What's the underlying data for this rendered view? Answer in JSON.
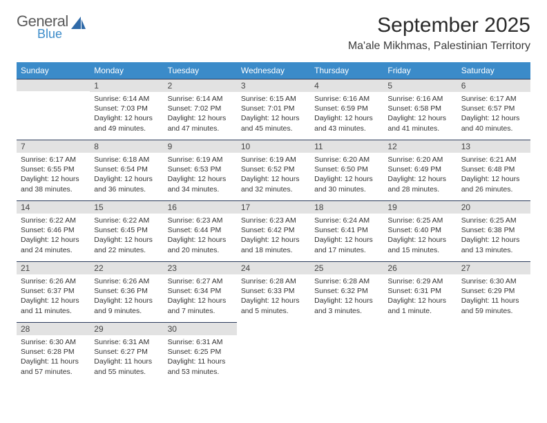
{
  "logo": {
    "word1": "General",
    "word2": "Blue",
    "icon_color": "#2f6aa8"
  },
  "title": "September 2025",
  "location": "Ma'ale Mikhmas, Palestinian Territory",
  "colors": {
    "header_bg": "#3b8bc9",
    "header_text": "#ffffff",
    "daynum_bg": "#e2e2e2",
    "cell_border": "#2a3a5a",
    "text": "#333333"
  },
  "weekdays": [
    "Sunday",
    "Monday",
    "Tuesday",
    "Wednesday",
    "Thursday",
    "Friday",
    "Saturday"
  ],
  "weeks": [
    [
      null,
      {
        "n": "1",
        "sunrise": "Sunrise: 6:14 AM",
        "sunset": "Sunset: 7:03 PM",
        "day1": "Daylight: 12 hours",
        "day2": "and 49 minutes."
      },
      {
        "n": "2",
        "sunrise": "Sunrise: 6:14 AM",
        "sunset": "Sunset: 7:02 PM",
        "day1": "Daylight: 12 hours",
        "day2": "and 47 minutes."
      },
      {
        "n": "3",
        "sunrise": "Sunrise: 6:15 AM",
        "sunset": "Sunset: 7:01 PM",
        "day1": "Daylight: 12 hours",
        "day2": "and 45 minutes."
      },
      {
        "n": "4",
        "sunrise": "Sunrise: 6:16 AM",
        "sunset": "Sunset: 6:59 PM",
        "day1": "Daylight: 12 hours",
        "day2": "and 43 minutes."
      },
      {
        "n": "5",
        "sunrise": "Sunrise: 6:16 AM",
        "sunset": "Sunset: 6:58 PM",
        "day1": "Daylight: 12 hours",
        "day2": "and 41 minutes."
      },
      {
        "n": "6",
        "sunrise": "Sunrise: 6:17 AM",
        "sunset": "Sunset: 6:57 PM",
        "day1": "Daylight: 12 hours",
        "day2": "and 40 minutes."
      }
    ],
    [
      {
        "n": "7",
        "sunrise": "Sunrise: 6:17 AM",
        "sunset": "Sunset: 6:55 PM",
        "day1": "Daylight: 12 hours",
        "day2": "and 38 minutes."
      },
      {
        "n": "8",
        "sunrise": "Sunrise: 6:18 AM",
        "sunset": "Sunset: 6:54 PM",
        "day1": "Daylight: 12 hours",
        "day2": "and 36 minutes."
      },
      {
        "n": "9",
        "sunrise": "Sunrise: 6:19 AM",
        "sunset": "Sunset: 6:53 PM",
        "day1": "Daylight: 12 hours",
        "day2": "and 34 minutes."
      },
      {
        "n": "10",
        "sunrise": "Sunrise: 6:19 AM",
        "sunset": "Sunset: 6:52 PM",
        "day1": "Daylight: 12 hours",
        "day2": "and 32 minutes."
      },
      {
        "n": "11",
        "sunrise": "Sunrise: 6:20 AM",
        "sunset": "Sunset: 6:50 PM",
        "day1": "Daylight: 12 hours",
        "day2": "and 30 minutes."
      },
      {
        "n": "12",
        "sunrise": "Sunrise: 6:20 AM",
        "sunset": "Sunset: 6:49 PM",
        "day1": "Daylight: 12 hours",
        "day2": "and 28 minutes."
      },
      {
        "n": "13",
        "sunrise": "Sunrise: 6:21 AM",
        "sunset": "Sunset: 6:48 PM",
        "day1": "Daylight: 12 hours",
        "day2": "and 26 minutes."
      }
    ],
    [
      {
        "n": "14",
        "sunrise": "Sunrise: 6:22 AM",
        "sunset": "Sunset: 6:46 PM",
        "day1": "Daylight: 12 hours",
        "day2": "and 24 minutes."
      },
      {
        "n": "15",
        "sunrise": "Sunrise: 6:22 AM",
        "sunset": "Sunset: 6:45 PM",
        "day1": "Daylight: 12 hours",
        "day2": "and 22 minutes."
      },
      {
        "n": "16",
        "sunrise": "Sunrise: 6:23 AM",
        "sunset": "Sunset: 6:44 PM",
        "day1": "Daylight: 12 hours",
        "day2": "and 20 minutes."
      },
      {
        "n": "17",
        "sunrise": "Sunrise: 6:23 AM",
        "sunset": "Sunset: 6:42 PM",
        "day1": "Daylight: 12 hours",
        "day2": "and 18 minutes."
      },
      {
        "n": "18",
        "sunrise": "Sunrise: 6:24 AM",
        "sunset": "Sunset: 6:41 PM",
        "day1": "Daylight: 12 hours",
        "day2": "and 17 minutes."
      },
      {
        "n": "19",
        "sunrise": "Sunrise: 6:25 AM",
        "sunset": "Sunset: 6:40 PM",
        "day1": "Daylight: 12 hours",
        "day2": "and 15 minutes."
      },
      {
        "n": "20",
        "sunrise": "Sunrise: 6:25 AM",
        "sunset": "Sunset: 6:38 PM",
        "day1": "Daylight: 12 hours",
        "day2": "and 13 minutes."
      }
    ],
    [
      {
        "n": "21",
        "sunrise": "Sunrise: 6:26 AM",
        "sunset": "Sunset: 6:37 PM",
        "day1": "Daylight: 12 hours",
        "day2": "and 11 minutes."
      },
      {
        "n": "22",
        "sunrise": "Sunrise: 6:26 AM",
        "sunset": "Sunset: 6:36 PM",
        "day1": "Daylight: 12 hours",
        "day2": "and 9 minutes."
      },
      {
        "n": "23",
        "sunrise": "Sunrise: 6:27 AM",
        "sunset": "Sunset: 6:34 PM",
        "day1": "Daylight: 12 hours",
        "day2": "and 7 minutes."
      },
      {
        "n": "24",
        "sunrise": "Sunrise: 6:28 AM",
        "sunset": "Sunset: 6:33 PM",
        "day1": "Daylight: 12 hours",
        "day2": "and 5 minutes."
      },
      {
        "n": "25",
        "sunrise": "Sunrise: 6:28 AM",
        "sunset": "Sunset: 6:32 PM",
        "day1": "Daylight: 12 hours",
        "day2": "and 3 minutes."
      },
      {
        "n": "26",
        "sunrise": "Sunrise: 6:29 AM",
        "sunset": "Sunset: 6:31 PM",
        "day1": "Daylight: 12 hours",
        "day2": "and 1 minute."
      },
      {
        "n": "27",
        "sunrise": "Sunrise: 6:30 AM",
        "sunset": "Sunset: 6:29 PM",
        "day1": "Daylight: 11 hours",
        "day2": "and 59 minutes."
      }
    ],
    [
      {
        "n": "28",
        "sunrise": "Sunrise: 6:30 AM",
        "sunset": "Sunset: 6:28 PM",
        "day1": "Daylight: 11 hours",
        "day2": "and 57 minutes."
      },
      {
        "n": "29",
        "sunrise": "Sunrise: 6:31 AM",
        "sunset": "Sunset: 6:27 PM",
        "day1": "Daylight: 11 hours",
        "day2": "and 55 minutes."
      },
      {
        "n": "30",
        "sunrise": "Sunrise: 6:31 AM",
        "sunset": "Sunset: 6:25 PM",
        "day1": "Daylight: 11 hours",
        "day2": "and 53 minutes."
      },
      null,
      null,
      null,
      null
    ]
  ]
}
